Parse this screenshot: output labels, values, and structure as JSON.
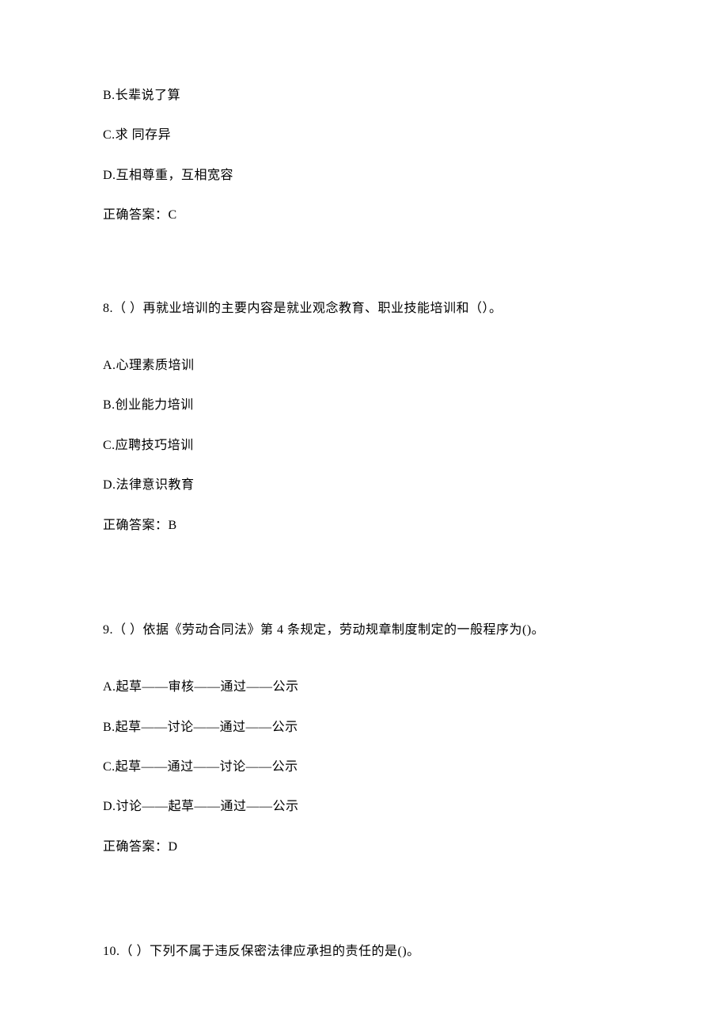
{
  "q7": {
    "opt_b": "B.长辈说了算",
    "opt_c": "C.求 同存异",
    "opt_d": "D.互相尊重，互相宽容",
    "answer": "正确答案：C"
  },
  "q8": {
    "stem": "8.（ ）再就业培训的主要内容是就业观念教育、职业技能培训和（）。",
    "opt_a": "A.心理素质培训",
    "opt_b": "B.创业能力培训",
    "opt_c": "C.应聘技巧培训",
    "opt_d": "D.法律意识教育",
    "answer": "正确答案：B"
  },
  "q9": {
    "stem": "9.（ ）依据《劳动合同法》第 4 条规定，劳动规章制度制定的一般程序为()。",
    "opt_a": "A.起草——审核——通过——公示",
    "opt_b": "B.起草——讨论——通过——公示",
    "opt_c": "C.起草——通过——讨论——公示",
    "opt_d": "D.讨论——起草——通过——公示",
    "answer": "正确答案：D"
  },
  "q10": {
    "stem": "10.（ ）下列不属于违反保密法律应承担的责任的是()。"
  }
}
